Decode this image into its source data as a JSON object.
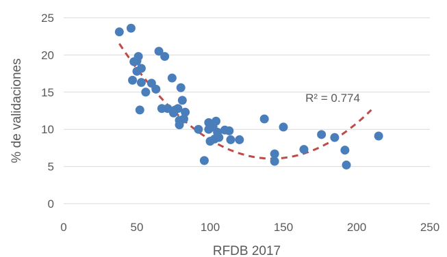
{
  "chart_data": {
    "type": "scatter",
    "xlabel": "RFDB 2017",
    "ylabel": "% de validaciones",
    "xlim": [
      0,
      250
    ],
    "ylim": [
      0,
      25
    ],
    "xticks": [
      0,
      50,
      100,
      150,
      200,
      250
    ],
    "yticks": [
      0,
      5,
      10,
      15,
      20,
      25
    ],
    "grid": "horizontal",
    "legend": "none",
    "annotation": "R² = 0.774",
    "colors": {
      "points": "#4a7ebb",
      "trend": "#be4b48",
      "grid": "#d9d9d9"
    },
    "trendline": {
      "type": "polynomial",
      "coefficients": [
        34.84,
        -0.4047,
        0.001423
      ],
      "x_range": [
        38,
        210
      ]
    },
    "points": [
      {
        "x": 38,
        "y": 23.1
      },
      {
        "x": 46,
        "y": 23.6
      },
      {
        "x": 48,
        "y": 19.1
      },
      {
        "x": 50,
        "y": 19.2
      },
      {
        "x": 51,
        "y": 19.8
      },
      {
        "x": 53,
        "y": 18.2
      },
      {
        "x": 50,
        "y": 17.8
      },
      {
        "x": 47,
        "y": 16.6
      },
      {
        "x": 53,
        "y": 16.3
      },
      {
        "x": 56,
        "y": 15.0
      },
      {
        "x": 60,
        "y": 16.2
      },
      {
        "x": 63,
        "y": 15.4
      },
      {
        "x": 65,
        "y": 20.5
      },
      {
        "x": 69,
        "y": 19.8
      },
      {
        "x": 52,
        "y": 12.6
      },
      {
        "x": 67,
        "y": 12.8
      },
      {
        "x": 71,
        "y": 12.8
      },
      {
        "x": 74,
        "y": 16.9
      },
      {
        "x": 80,
        "y": 15.6
      },
      {
        "x": 81,
        "y": 13.9
      },
      {
        "x": 76,
        "y": 12.6
      },
      {
        "x": 75,
        "y": 12.2
      },
      {
        "x": 78,
        "y": 12.8
      },
      {
        "x": 83,
        "y": 12.3
      },
      {
        "x": 79,
        "y": 11.2
      },
      {
        "x": 82,
        "y": 11.4
      },
      {
        "x": 79,
        "y": 10.6
      },
      {
        "x": 92,
        "y": 10.0
      },
      {
        "x": 96,
        "y": 5.8
      },
      {
        "x": 99,
        "y": 10.9
      },
      {
        "x": 99,
        "y": 10.0
      },
      {
        "x": 100,
        "y": 8.4
      },
      {
        "x": 102,
        "y": 10.3
      },
      {
        "x": 104,
        "y": 11.1
      },
      {
        "x": 103,
        "y": 8.7
      },
      {
        "x": 105,
        "y": 9.6
      },
      {
        "x": 106,
        "y": 8.9
      },
      {
        "x": 110,
        "y": 9.9
      },
      {
        "x": 113,
        "y": 9.8
      },
      {
        "x": 114,
        "y": 8.6
      },
      {
        "x": 120,
        "y": 8.6
      },
      {
        "x": 137,
        "y": 11.4
      },
      {
        "x": 144,
        "y": 6.7
      },
      {
        "x": 144,
        "y": 5.7
      },
      {
        "x": 150,
        "y": 10.3
      },
      {
        "x": 164,
        "y": 7.3
      },
      {
        "x": 176,
        "y": 9.3
      },
      {
        "x": 185,
        "y": 8.9
      },
      {
        "x": 192,
        "y": 7.2
      },
      {
        "x": 193,
        "y": 5.2
      },
      {
        "x": 215,
        "y": 9.1
      }
    ]
  }
}
